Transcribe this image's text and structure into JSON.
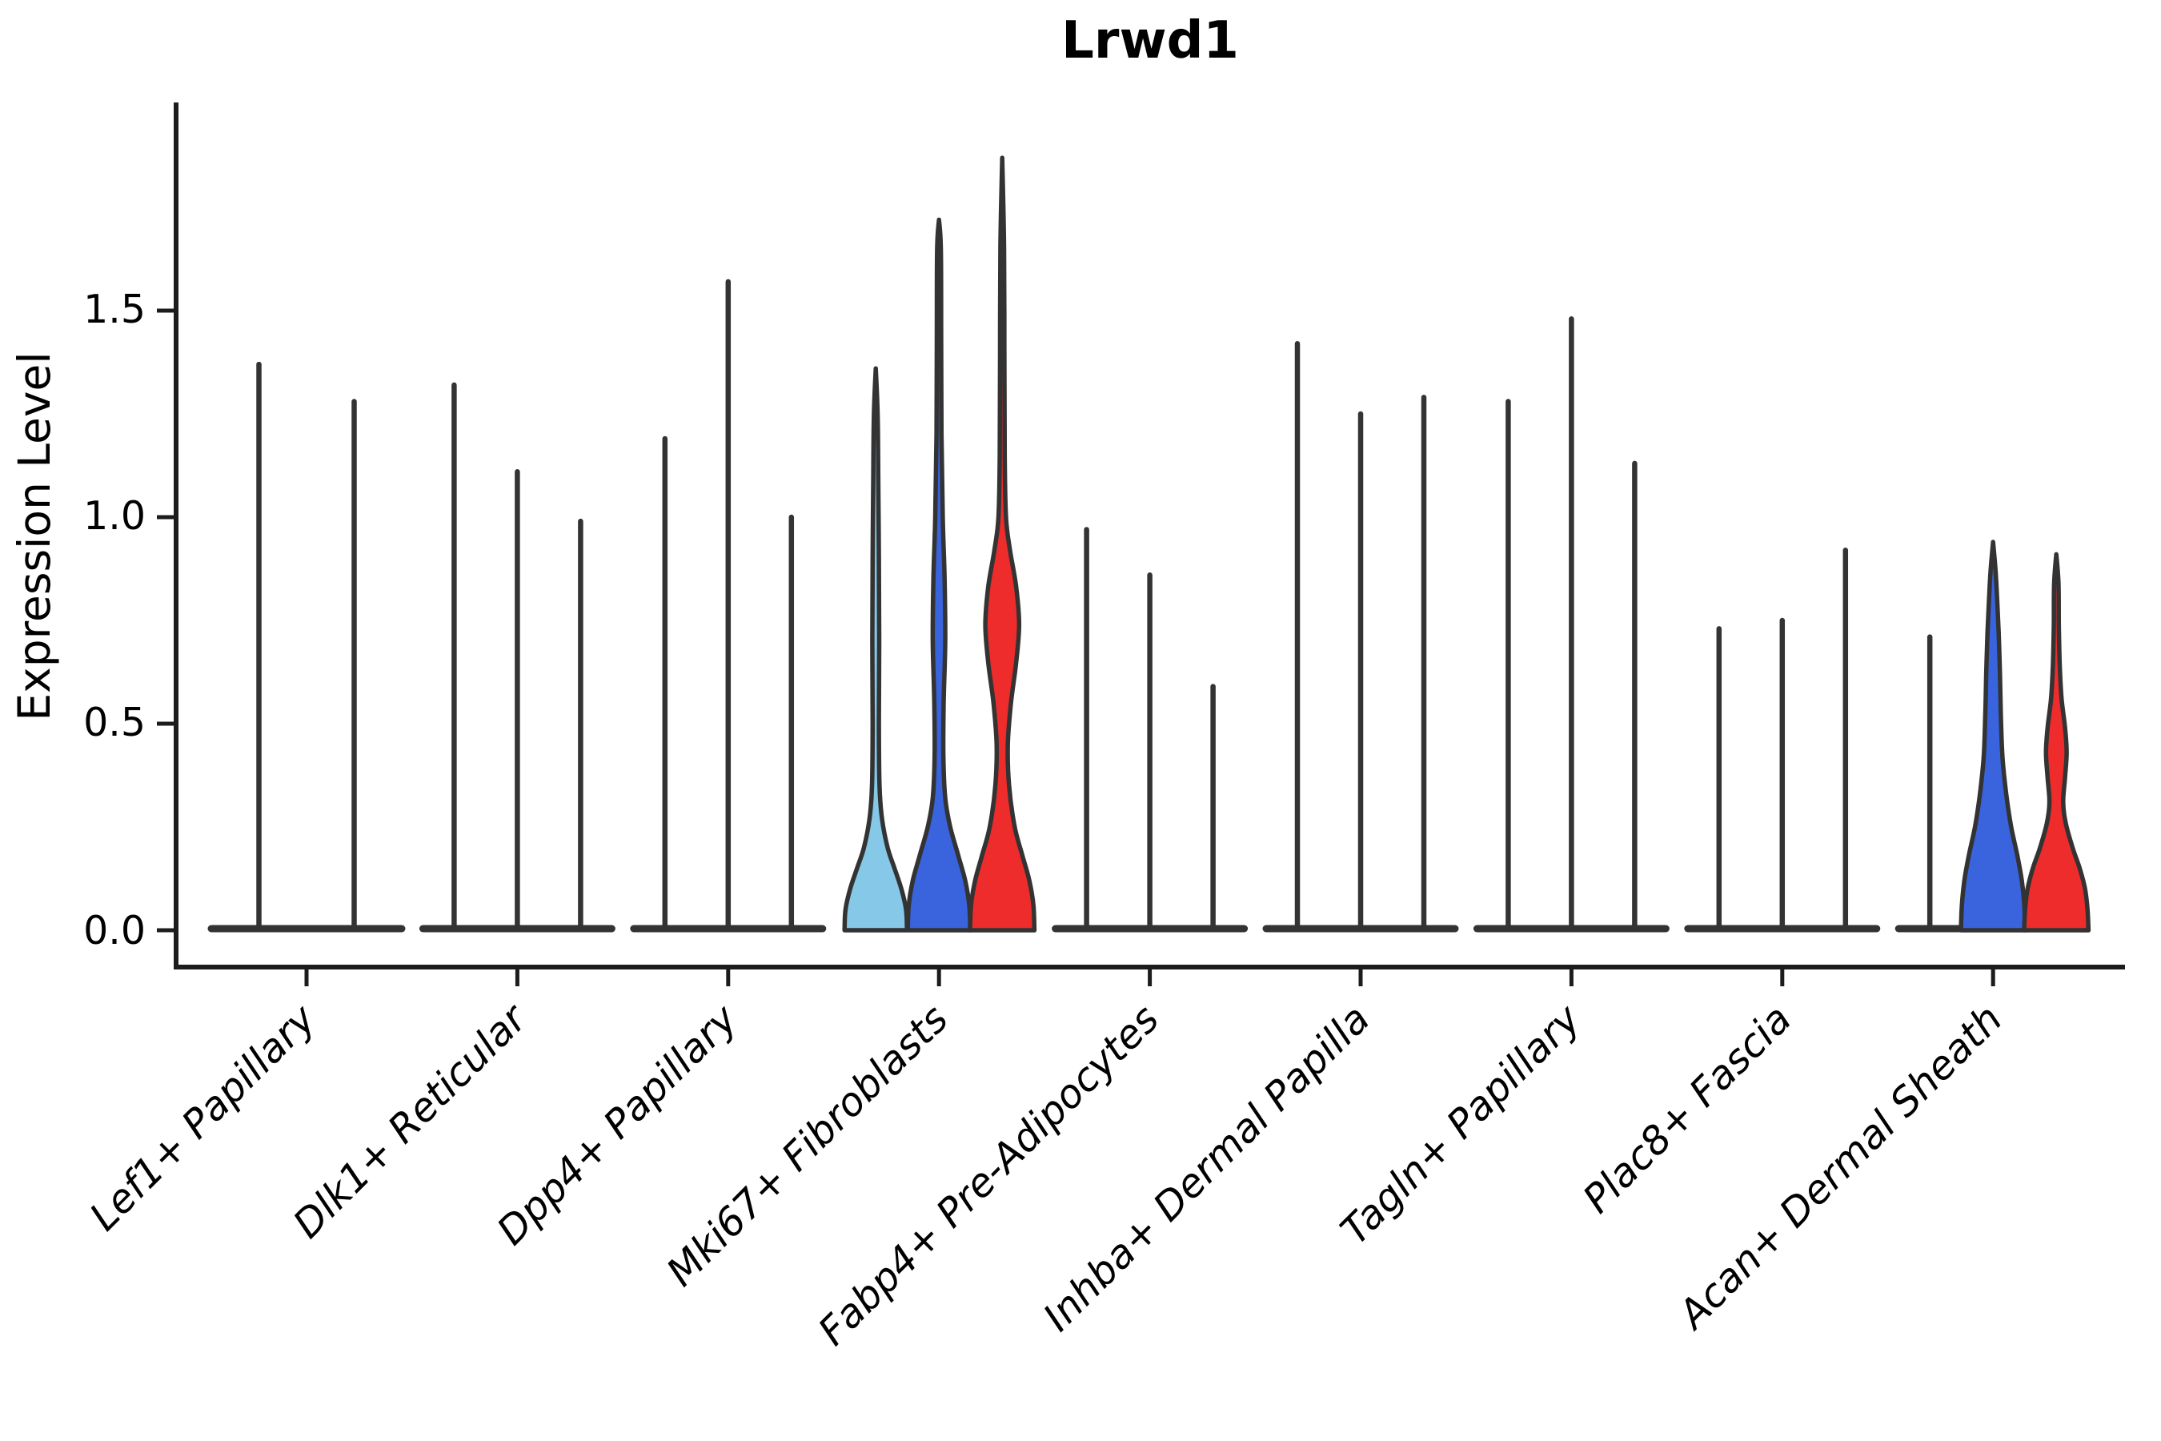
{
  "title": "Lrwd1",
  "y_axis": {
    "label": "Expression Level",
    "ticks": [
      {
        "label": "0.0",
        "value": 0.0
      },
      {
        "label": "0.5",
        "value": 0.5
      },
      {
        "label": "1.0",
        "value": 1.0
      },
      {
        "label": "1.5",
        "value": 1.5
      }
    ]
  },
  "colors": {
    "light_blue": "#85C8E8",
    "blue": "#3964DE",
    "red": "#EE2C2C",
    "outline": "#333333",
    "spine": "#1c1c1c"
  },
  "chart_data": {
    "type": "violin",
    "title": "Lrwd1",
    "xlabel": "",
    "ylabel": "Expression Level",
    "ylim": [
      -0.09,
      2.0
    ],
    "yticks": [
      0.0,
      0.5,
      1.0,
      1.5
    ],
    "legend": "none",
    "grid": false,
    "series_colors": [
      "#85C8E8",
      "#3964DE",
      "#EE2C2C"
    ],
    "categories": [
      "Lef1+ Papillary",
      "Dlk1+ Reticular",
      "Dpp4+ Papillary",
      "Mki67+ Fibroblasts",
      "Fabp4+ Pre-Adipocytes",
      "Inhba+ Dermal Papilla",
      "Tagln+ Papillary",
      "Plac8+ Fascia",
      "Acan+ Dermal Sheath"
    ],
    "groups": [
      {
        "category": "Lef1+ Papillary",
        "n_positions": 2,
        "violins": [
          {
            "position": 0,
            "max": 1.37,
            "shape": "stem"
          },
          {
            "position": 1,
            "max": 1.28,
            "shape": "stem"
          }
        ]
      },
      {
        "category": "Dlk1+ Reticular",
        "n_positions": 3,
        "violins": [
          {
            "position": 0,
            "max": 1.32,
            "shape": "stem"
          },
          {
            "position": 1,
            "max": 1.11,
            "shape": "stem"
          },
          {
            "position": 2,
            "max": 0.99,
            "shape": "stem"
          }
        ]
      },
      {
        "category": "Dpp4+ Papillary",
        "n_positions": 3,
        "violins": [
          {
            "position": 0,
            "max": 1.19,
            "shape": "stem"
          },
          {
            "position": 1,
            "max": 1.57,
            "shape": "stem"
          },
          {
            "position": 2,
            "max": 1.0,
            "shape": "stem"
          }
        ]
      },
      {
        "category": "Mki67+ Fibroblasts",
        "n_positions": 3,
        "violins": [
          {
            "position": 0,
            "max": 1.36,
            "shape": "density",
            "color": "#85C8E8",
            "profile": [
              [
                0,
                1.0
              ],
              [
                0.05,
                0.97
              ],
              [
                0.1,
                0.82
              ],
              [
                0.15,
                0.6
              ],
              [
                0.2,
                0.38
              ],
              [
                0.27,
                0.2
              ],
              [
                0.35,
                0.12
              ],
              [
                0.5,
                0.1
              ],
              [
                0.7,
                0.11
              ],
              [
                0.9,
                0.1
              ],
              [
                1.1,
                0.08
              ],
              [
                1.25,
                0.06
              ],
              [
                1.36,
                0.0
              ]
            ]
          },
          {
            "position": 1,
            "max": 1.72,
            "shape": "density",
            "color": "#3964DE",
            "profile": [
              [
                0,
                1.0
              ],
              [
                0.06,
                0.97
              ],
              [
                0.12,
                0.84
              ],
              [
                0.18,
                0.62
              ],
              [
                0.25,
                0.36
              ],
              [
                0.32,
                0.2
              ],
              [
                0.42,
                0.14
              ],
              [
                0.55,
                0.15
              ],
              [
                0.7,
                0.2
              ],
              [
                0.85,
                0.18
              ],
              [
                1.0,
                0.12
              ],
              [
                1.2,
                0.08
              ],
              [
                1.45,
                0.07
              ],
              [
                1.65,
                0.06
              ],
              [
                1.72,
                0.0
              ]
            ]
          },
          {
            "position": 2,
            "max": 1.87,
            "shape": "density",
            "color": "#EE2C2C",
            "profile": [
              [
                0,
                1.03
              ],
              [
                0.06,
                1.0
              ],
              [
                0.12,
                0.87
              ],
              [
                0.18,
                0.65
              ],
              [
                0.25,
                0.4
              ],
              [
                0.35,
                0.22
              ],
              [
                0.45,
                0.18
              ],
              [
                0.55,
                0.28
              ],
              [
                0.65,
                0.45
              ],
              [
                0.74,
                0.54
              ],
              [
                0.83,
                0.45
              ],
              [
                0.92,
                0.25
              ],
              [
                1.0,
                0.12
              ],
              [
                1.15,
                0.08
              ],
              [
                1.4,
                0.07
              ],
              [
                1.65,
                0.06
              ],
              [
                1.87,
                0.0
              ]
            ]
          }
        ]
      },
      {
        "category": "Fabp4+ Pre-Adipocytes",
        "n_positions": 3,
        "violins": [
          {
            "position": 0,
            "max": 0.97,
            "shape": "stem"
          },
          {
            "position": 1,
            "max": 0.86,
            "shape": "stem"
          },
          {
            "position": 2,
            "max": 0.59,
            "shape": "stem"
          }
        ]
      },
      {
        "category": "Inhba+ Dermal Papilla",
        "n_positions": 3,
        "violins": [
          {
            "position": 0,
            "max": 1.42,
            "shape": "stem"
          },
          {
            "position": 1,
            "max": 1.25,
            "shape": "stem"
          },
          {
            "position": 2,
            "max": 1.29,
            "shape": "stem"
          }
        ]
      },
      {
        "category": "Tagln+ Papillary",
        "n_positions": 3,
        "violins": [
          {
            "position": 0,
            "max": 1.28,
            "shape": "stem"
          },
          {
            "position": 1,
            "max": 1.48,
            "shape": "stem"
          },
          {
            "position": 2,
            "max": 1.13,
            "shape": "stem"
          }
        ]
      },
      {
        "category": "Plac8+ Fascia",
        "n_positions": 3,
        "violins": [
          {
            "position": 0,
            "max": 0.73,
            "shape": "stem"
          },
          {
            "position": 1,
            "max": 0.75,
            "shape": "stem"
          },
          {
            "position": 2,
            "max": 0.92,
            "shape": "stem"
          }
        ]
      },
      {
        "category": "Acan+ Dermal Sheath",
        "n_positions": 3,
        "violins": [
          {
            "position": 0,
            "max": 0.71,
            "shape": "stem"
          },
          {
            "position": 1,
            "max": 0.94,
            "shape": "density",
            "color": "#3964DE",
            "profile": [
              [
                0,
                1.03
              ],
              [
                0.06,
                1.0
              ],
              [
                0.12,
                0.92
              ],
              [
                0.18,
                0.78
              ],
              [
                0.25,
                0.58
              ],
              [
                0.33,
                0.42
              ],
              [
                0.42,
                0.3
              ],
              [
                0.52,
                0.25
              ],
              [
                0.62,
                0.22
              ],
              [
                0.72,
                0.18
              ],
              [
                0.8,
                0.13
              ],
              [
                0.87,
                0.08
              ],
              [
                0.94,
                0.0
              ]
            ]
          },
          {
            "position": 2,
            "max": 0.91,
            "shape": "density",
            "color": "#EE2C2C",
            "profile": [
              [
                0,
                1.03
              ],
              [
                0.05,
                1.0
              ],
              [
                0.1,
                0.92
              ],
              [
                0.15,
                0.75
              ],
              [
                0.2,
                0.52
              ],
              [
                0.26,
                0.3
              ],
              [
                0.31,
                0.22
              ],
              [
                0.37,
                0.28
              ],
              [
                0.43,
                0.33
              ],
              [
                0.49,
                0.28
              ],
              [
                0.56,
                0.17
              ],
              [
                0.64,
                0.11
              ],
              [
                0.74,
                0.08
              ],
              [
                0.84,
                0.07
              ],
              [
                0.91,
                0.0
              ]
            ]
          }
        ]
      }
    ]
  }
}
